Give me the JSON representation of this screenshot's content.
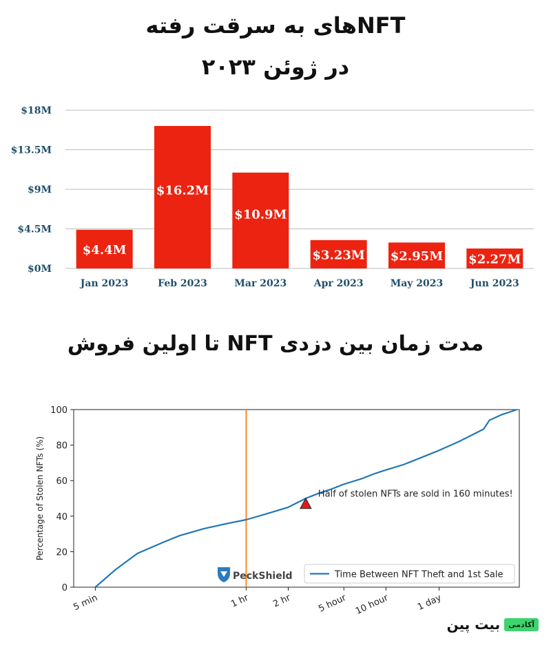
{
  "titles": {
    "line1": "NFTهای به سرقت رفته",
    "line2": "در ژوئن ۲۰۲۳",
    "section2": "مدت زمان بین دزدی NFT تا اولین فروش"
  },
  "colors": {
    "bar": "#ec2310",
    "axis_text": "#1f4e6b",
    "line": "#1f77b4",
    "vline": "#ff7f0e",
    "marker": "#e3191c"
  },
  "chart_data": [
    {
      "type": "bar",
      "categories": [
        "Jan 2023",
        "Feb 2023",
        "Mar 2023",
        "Apr 2023",
        "May 2023",
        "Jun 2023"
      ],
      "values": [
        4.4,
        16.2,
        10.9,
        3.23,
        2.95,
        2.27
      ],
      "value_labels": [
        "$4.4M",
        "$16.2M",
        "$10.9M",
        "$3.23M",
        "$2.95M",
        "$2.27M"
      ],
      "yticks": [
        0,
        4.5,
        9,
        13.5,
        18
      ],
      "ytick_labels": [
        "$0M",
        "$4.5M",
        "$9M",
        "$13.5M",
        "$18M"
      ],
      "ylim": [
        0,
        18
      ],
      "grid": "horizontal"
    },
    {
      "type": "line",
      "series": [
        {
          "name": "Time Between NFT Theft and 1st Sale",
          "x": [
            5,
            7,
            10,
            15,
            20,
            30,
            45,
            60,
            90,
            120,
            160,
            200,
            240,
            300,
            400,
            500,
            600,
            800,
            1000,
            1440,
            2000,
            3000,
            3300,
            4000,
            5200
          ],
          "y": [
            0,
            10,
            19,
            25,
            29,
            33,
            36,
            38,
            42,
            45,
            50,
            53,
            55,
            58,
            61,
            64,
            66,
            69,
            72,
            77,
            82,
            89,
            94,
            97,
            100
          ]
        }
      ],
      "xscale": "log",
      "xticks": [
        5,
        60,
        120,
        300,
        600,
        1440
      ],
      "xtick_labels": [
        "5 min",
        "1 hr",
        "2 hr",
        "5 hour",
        "10 hour",
        "1 day"
      ],
      "xlim": [
        3.5,
        5400
      ],
      "ylabel": "Percentage of Stolen NFTs (%)",
      "yticks": [
        0,
        20,
        40,
        60,
        80,
        100
      ],
      "ylim": [
        0,
        100
      ],
      "vline_x": 60,
      "marker": {
        "x": 160,
        "y": 47,
        "shape": "triangle"
      },
      "annotation": "Half of stolen NFTs are sold in 160 minutes!",
      "legend_position": "lower-right",
      "logo_text": "PeckShield"
    }
  ],
  "brand": {
    "name": "بیت پین",
    "badge": "آکادمی"
  }
}
